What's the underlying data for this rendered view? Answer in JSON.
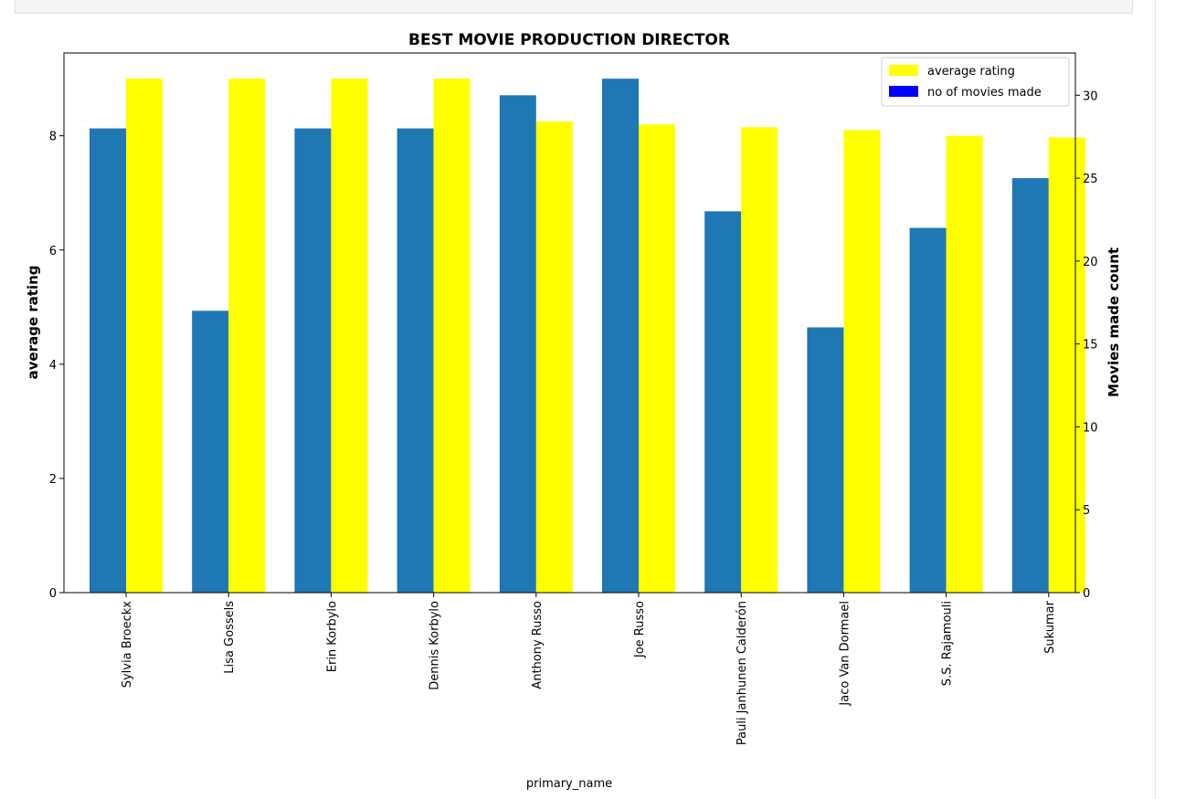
{
  "chart_data": {
    "type": "bar",
    "title": "BEST MOVIE PRODUCTION DIRECTOR",
    "xlabel": "primary_name",
    "ylabel": "average rating",
    "ylabel_right": "Movies made count",
    "categories": [
      "Sylvia Broeckx",
      "Lisa Gossels",
      "Erin Korbylo",
      "Dennis Korbylo",
      "Anthony Russo",
      "Joe Russo",
      "Pauli Janhunen Calderón",
      "Jaco Van Dormael",
      "S.S. Rajamouli",
      "Sukumar"
    ],
    "ylim": [
      0,
      9.45
    ],
    "ylim_right": [
      0,
      32.55
    ],
    "yticks": [
      0,
      2,
      4,
      6,
      8
    ],
    "yticks_right": [
      0,
      5,
      10,
      15,
      20,
      25,
      30
    ],
    "series": [
      {
        "name": "no of movies made",
        "axis": "right",
        "color": "#1f77b4",
        "values": [
          28,
          17,
          28,
          28,
          30,
          31,
          23,
          16,
          22,
          25
        ]
      },
      {
        "name": "average rating",
        "axis": "left",
        "color": "#ffff00",
        "values": [
          9.0,
          9.0,
          9.0,
          9.0,
          8.25,
          8.2,
          8.15,
          8.1,
          8.0,
          7.97
        ]
      }
    ],
    "legend": {
      "placement": "top-right",
      "entries": [
        {
          "label": "average rating",
          "color": "#ffff00"
        },
        {
          "label": "no of movies made",
          "color": "#0000ff"
        }
      ]
    }
  }
}
